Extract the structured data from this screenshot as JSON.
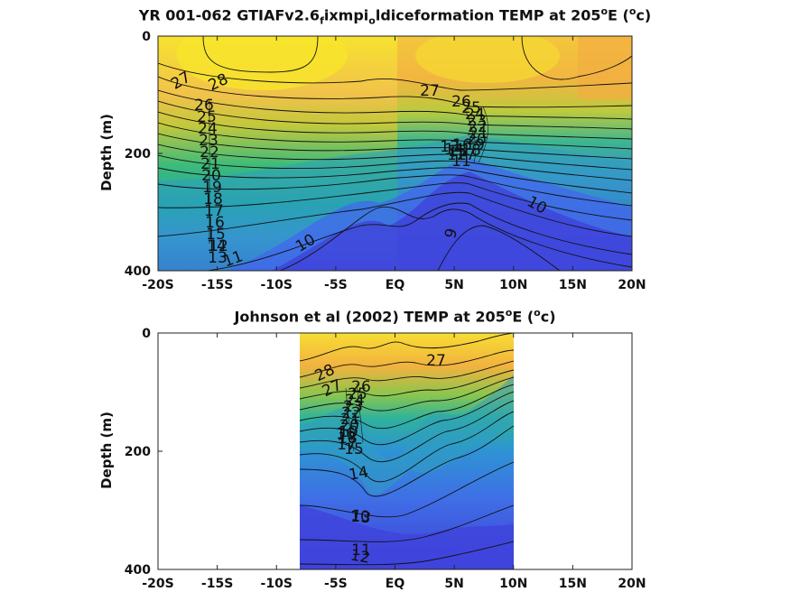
{
  "colors": {
    "warm": "#f7e22f",
    "orange": "#f2b23f",
    "green": "#3dbb7a",
    "teal": "#22a6a7",
    "blue": "#3f6fe6",
    "deep": "#3f3fd8",
    "contour": "#111111"
  },
  "chart_data": [
    {
      "type": "heatmap",
      "title": "YR 001-062 GTIAFv2.6",
      "title_sub1": "f",
      "title_mid": "ixmpi",
      "title_sub2": "o",
      "title_end": "ldiceformation TEMP at 205",
      "title_sup": "o",
      "title_unit_pre": "E (",
      "title_unit_sup": "o",
      "title_unit_post": "c)",
      "ylabel": "Depth (m)",
      "xlim": [
        -20,
        20
      ],
      "ylim": [
        400,
        0
      ],
      "x_ticks": [
        -20,
        -15,
        -10,
        -5,
        0,
        5,
        10,
        15,
        20
      ],
      "x_tick_labels": [
        "-20S",
        "-15S",
        "-10S",
        "-5S",
        "EQ",
        "5N",
        "10N",
        "15N",
        "20N"
      ],
      "y_ticks": [
        0,
        200,
        400
      ],
      "y_tick_labels": [
        "0",
        "200",
        "400"
      ],
      "contour_labels": [
        "28",
        "27",
        "26",
        "25",
        "24",
        "23",
        "22",
        "21",
        "20",
        "19",
        "18",
        "17",
        "16",
        "15",
        "14",
        "13",
        "12",
        "11",
        "10",
        "9",
        "27",
        "26",
        "25",
        "24",
        "23",
        "22",
        "21",
        "20",
        "19",
        "18",
        "17",
        "16",
        "15",
        "14",
        "13",
        "12",
        "11",
        "10"
      ],
      "colorbar_range": [
        9,
        29
      ]
    },
    {
      "type": "heatmap",
      "title": "Johnson et al (2002) TEMP at 205",
      "title_sup": "o",
      "title_unit_pre": "E (",
      "title_unit_sup": "o",
      "title_unit_post": "c)",
      "ylabel": "Depth (m)",
      "xlim": [
        -20,
        20
      ],
      "ylim": [
        400,
        0
      ],
      "data_xrange": [
        -8,
        10
      ],
      "x_ticks": [
        -20,
        -15,
        -10,
        -5,
        0,
        5,
        10,
        15,
        20
      ],
      "x_tick_labels": [
        "-20S",
        "-15S",
        "-10S",
        "-5S",
        "EQ",
        "5N",
        "10N",
        "15N",
        "20N"
      ],
      "y_ticks": [
        0,
        200,
        400
      ],
      "y_tick_labels": [
        "0",
        "200",
        "400"
      ],
      "contour_labels": [
        "28",
        "27",
        "26",
        "25",
        "24",
        "23",
        "22",
        "21",
        "20",
        "19",
        "18",
        "17",
        "16",
        "15",
        "14",
        "13",
        "12",
        "11",
        "10",
        "27"
      ],
      "colorbar_range": [
        9,
        29
      ]
    }
  ]
}
